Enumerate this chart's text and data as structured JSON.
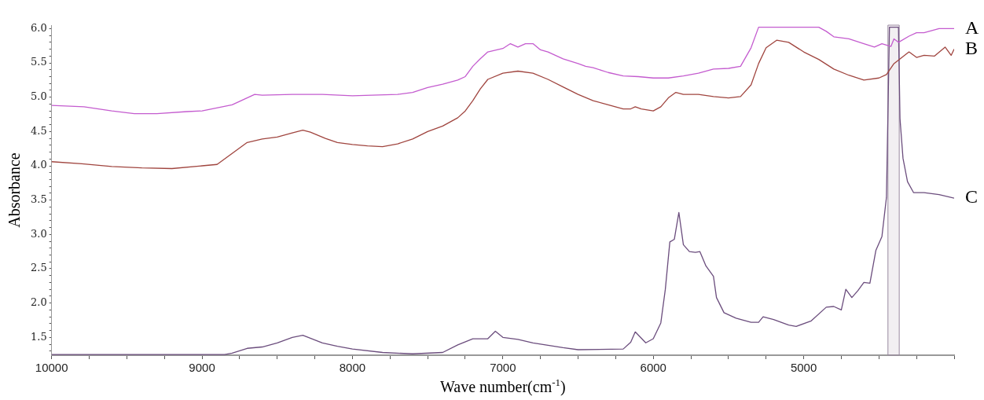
{
  "chart_data": {
    "type": "line",
    "xlabel": "Wave number(cm$^{-1}$)",
    "ylabel": "Absorbance",
    "xlim": [
      10000,
      4000
    ],
    "ylim": [
      1.24,
      6.05
    ],
    "xticks": [
      10000,
      {
        "value": 9750,
        "label": null
      },
      {
        "value": 9500,
        "label": null
      },
      {
        "value": 9250,
        "label": null
      },
      9000,
      {
        "value": 8750,
        "label": null
      },
      {
        "value": 8500,
        "label": null
      },
      {
        "value": 8250,
        "label": null
      },
      8000,
      {
        "value": 7750,
        "label": null
      },
      {
        "value": 7500,
        "label": null
      },
      {
        "value": 7250,
        "label": null
      },
      7000,
      {
        "value": 6750,
        "label": null
      },
      {
        "value": 6500,
        "label": null
      },
      {
        "value": 6250,
        "label": null
      },
      6000,
      {
        "value": 5750,
        "label": null
      },
      {
        "value": 5500,
        "label": null
      },
      {
        "value": 5250,
        "label": null
      },
      5000,
      {
        "value": 4750,
        "label": null
      },
      {
        "value": 4500,
        "label": null
      },
      {
        "value": 4250,
        "label": null
      },
      {
        "value": 4000,
        "label": null
      }
    ],
    "yticks": [
      {
        "value": 1.3,
        "label": null
      },
      {
        "value": 1.4,
        "label": null
      },
      {
        "value": 1.5,
        "label": "1.5"
      },
      {
        "value": 1.6,
        "label": null
      },
      {
        "value": 1.7,
        "label": null
      },
      {
        "value": 1.8,
        "label": null
      },
      {
        "value": 1.9,
        "label": null
      },
      {
        "value": 2,
        "label": "2.0"
      },
      {
        "value": 2.1,
        "label": null
      },
      {
        "value": 2.2,
        "label": null
      },
      {
        "value": 2.3,
        "label": null
      },
      {
        "value": 2.4,
        "label": null
      },
      {
        "value": 2.5,
        "label": "2.5"
      },
      {
        "value": 2.6,
        "label": null
      },
      {
        "value": 2.7,
        "label": null
      },
      {
        "value": 2.8,
        "label": null
      },
      {
        "value": 2.9,
        "label": null
      },
      {
        "value": 3,
        "label": "3.0"
      },
      {
        "value": 3.1,
        "label": null
      },
      {
        "value": 3.2,
        "label": null
      },
      {
        "value": 3.3,
        "label": null
      },
      {
        "value": 3.4,
        "label": null
      },
      {
        "value": 3.5,
        "label": "3.5"
      },
      {
        "value": 3.6,
        "label": null
      },
      {
        "value": 3.7,
        "label": null
      },
      {
        "value": 3.8,
        "label": null
      },
      {
        "value": 3.9,
        "label": null
      },
      {
        "value": 4,
        "label": "4.0"
      },
      {
        "value": 4.1,
        "label": null
      },
      {
        "value": 4.2,
        "label": null
      },
      {
        "value": 4.3,
        "label": null
      },
      {
        "value": 4.4,
        "label": null
      },
      {
        "value": 4.5,
        "label": "4.5"
      },
      {
        "value": 4.6,
        "label": null
      },
      {
        "value": 4.7,
        "label": null
      },
      {
        "value": 4.8,
        "label": null
      },
      {
        "value": 4.9,
        "label": null
      },
      {
        "value": 5,
        "label": "5.0"
      },
      {
        "value": 5.1,
        "label": null
      },
      {
        "value": 5.2,
        "label": null
      },
      {
        "value": 5.3,
        "label": null
      },
      {
        "value": 5.4,
        "label": null
      },
      {
        "value": 5.5,
        "label": "5.5"
      },
      {
        "value": 5.6,
        "label": null
      },
      {
        "value": 5.7,
        "label": null
      },
      {
        "value": 5.8,
        "label": null
      },
      {
        "value": 5.9,
        "label": null
      },
      {
        "value": 6,
        "label": "6.0"
      }
    ],
    "grid": false,
    "marker": "none",
    "line_style": "solid",
    "bands": [
      {
        "axis": "x",
        "from": 4440,
        "to": 4365,
        "color": "#9a8aa0"
      }
    ],
    "series": [
      {
        "name": "A",
        "color": "#c45ccf",
        "x": [
          10000,
          9785,
          9600,
          9450,
          9300,
          9100,
          9000,
          8800,
          8650,
          8600,
          8400,
          8200,
          8000,
          7700,
          7600,
          7500,
          7400,
          7300,
          7250,
          7200,
          7150,
          7100,
          7000,
          6950,
          6900,
          6850,
          6800,
          6750,
          6700,
          6600,
          6500,
          6450,
          6400,
          6300,
          6200,
          6100,
          6000,
          5900,
          5800,
          5700,
          5600,
          5500,
          5420,
          5350,
          5300,
          4900,
          4850,
          4800,
          4700,
          4600,
          4530,
          4480,
          4420,
          4400,
          4370,
          4300,
          4250,
          4200,
          4100,
          4000
        ],
        "values": [
          4.88,
          4.86,
          4.8,
          4.76,
          4.76,
          4.79,
          4.8,
          4.89,
          5.04,
          5.03,
          5.04,
          5.04,
          5.02,
          5.04,
          5.07,
          5.14,
          5.19,
          5.25,
          5.3,
          5.45,
          5.56,
          5.66,
          5.71,
          5.78,
          5.73,
          5.78,
          5.78,
          5.69,
          5.66,
          5.56,
          5.49,
          5.45,
          5.43,
          5.36,
          5.31,
          5.3,
          5.28,
          5.28,
          5.31,
          5.35,
          5.41,
          5.42,
          5.45,
          5.72,
          6.02,
          6.02,
          5.96,
          5.88,
          5.85,
          5.78,
          5.73,
          5.78,
          5.74,
          5.85,
          5.8,
          5.89,
          5.94,
          5.94,
          6.0,
          6.0
        ]
      },
      {
        "name": "B",
        "color": "#a0453f",
        "x": [
          10000,
          9800,
          9600,
          9400,
          9200,
          9000,
          8900,
          8800,
          8700,
          8600,
          8500,
          8400,
          8330,
          8280,
          8180,
          8100,
          8000,
          7900,
          7800,
          7700,
          7600,
          7500,
          7400,
          7300,
          7250,
          7200,
          7150,
          7100,
          7000,
          6900,
          6800,
          6700,
          6600,
          6500,
          6400,
          6300,
          6200,
          6150,
          6120,
          6080,
          6000,
          5950,
          5900,
          5850,
          5800,
          5700,
          5600,
          5500,
          5420,
          5350,
          5300,
          5250,
          5180,
          5100,
          5000,
          4900,
          4800,
          4700,
          4600,
          4500,
          4450,
          4400,
          4300,
          4250,
          4200,
          4130,
          4060,
          4020,
          4000
        ],
        "values": [
          4.06,
          4.03,
          3.99,
          3.97,
          3.96,
          4.0,
          4.02,
          4.18,
          4.34,
          4.39,
          4.42,
          4.48,
          4.52,
          4.49,
          4.4,
          4.34,
          4.31,
          4.29,
          4.28,
          4.32,
          4.39,
          4.5,
          4.58,
          4.7,
          4.8,
          4.95,
          5.12,
          5.26,
          5.35,
          5.38,
          5.35,
          5.26,
          5.15,
          5.04,
          4.95,
          4.89,
          4.83,
          4.83,
          4.86,
          4.83,
          4.8,
          4.86,
          4.99,
          5.07,
          5.04,
          5.04,
          5.01,
          4.99,
          5.01,
          5.18,
          5.49,
          5.72,
          5.83,
          5.8,
          5.66,
          5.55,
          5.41,
          5.32,
          5.25,
          5.28,
          5.33,
          5.49,
          5.66,
          5.58,
          5.61,
          5.6,
          5.73,
          5.61,
          5.7
        ]
      },
      {
        "name": "C",
        "color": "#6b4d7d",
        "x": [
          10000,
          8850,
          8800,
          8700,
          8600,
          8500,
          8400,
          8330,
          8200,
          8100,
          8000,
          7800,
          7600,
          7400,
          7300,
          7200,
          7100,
          7050,
          7000,
          6900,
          6800,
          6600,
          6500,
          6200,
          6150,
          6120,
          6050,
          6000,
          5950,
          5920,
          5890,
          5860,
          5830,
          5800,
          5760,
          5720,
          5690,
          5650,
          5600,
          5580,
          5530,
          5450,
          5350,
          5300,
          5270,
          5200,
          5100,
          5050,
          4950,
          4850,
          4800,
          4750,
          4720,
          4680,
          4640,
          4600,
          4560,
          4520,
          4480,
          4450,
          4430,
          4370,
          4360,
          4340,
          4310,
          4270,
          4200,
          4100,
          4000
        ],
        "values": [
          1.25,
          1.25,
          1.27,
          1.34,
          1.36,
          1.42,
          1.5,
          1.53,
          1.42,
          1.37,
          1.33,
          1.28,
          1.26,
          1.28,
          1.39,
          1.48,
          1.48,
          1.59,
          1.5,
          1.47,
          1.42,
          1.35,
          1.32,
          1.33,
          1.43,
          1.58,
          1.42,
          1.48,
          1.71,
          2.2,
          2.89,
          2.93,
          3.32,
          2.85,
          2.75,
          2.74,
          2.75,
          2.54,
          2.39,
          2.08,
          1.86,
          1.78,
          1.72,
          1.72,
          1.8,
          1.76,
          1.68,
          1.66,
          1.74,
          1.94,
          1.95,
          1.9,
          2.2,
          2.08,
          2.18,
          2.3,
          2.29,
          2.77,
          2.97,
          3.54,
          6.02,
          6.02,
          4.69,
          4.11,
          3.77,
          3.61,
          3.61,
          3.58,
          3.53
        ]
      }
    ]
  }
}
